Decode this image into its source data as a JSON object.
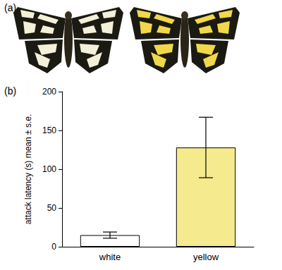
{
  "panel_labels": [
    "(a)",
    "(b)"
  ],
  "chart_data": {
    "type": "bar",
    "categories": [
      "white",
      "yellow"
    ],
    "values": [
      15,
      128
    ],
    "errors": [
      4,
      39
    ],
    "colors": [
      "#ffffff",
      "#f6ea8e"
    ],
    "ylabel": "attack latency (s) mean ± s.e.",
    "ylim": [
      0,
      200
    ],
    "yticks": [
      0,
      50,
      100,
      150,
      200
    ],
    "grid": false
  }
}
